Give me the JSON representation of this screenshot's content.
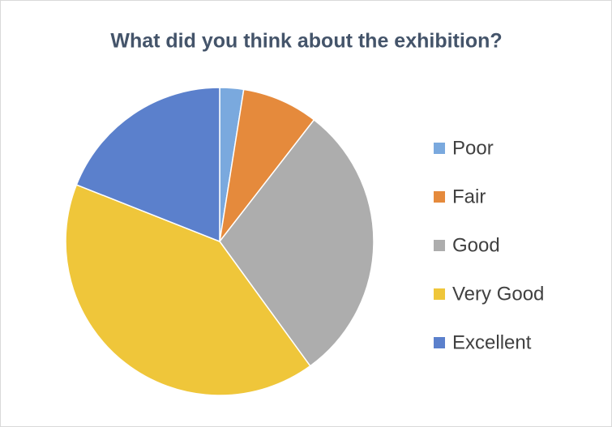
{
  "chart_data": {
    "type": "pie",
    "title": "What did you think about the exhibition?",
    "categories": [
      "Poor",
      "Fair",
      "Good",
      "Very Good",
      "Excellent"
    ],
    "values": [
      2.5,
      8,
      29.5,
      41,
      19
    ],
    "colors": [
      "#7aa9de",
      "#e58a3c",
      "#adadad",
      "#efc63a",
      "#5b80cc"
    ]
  }
}
